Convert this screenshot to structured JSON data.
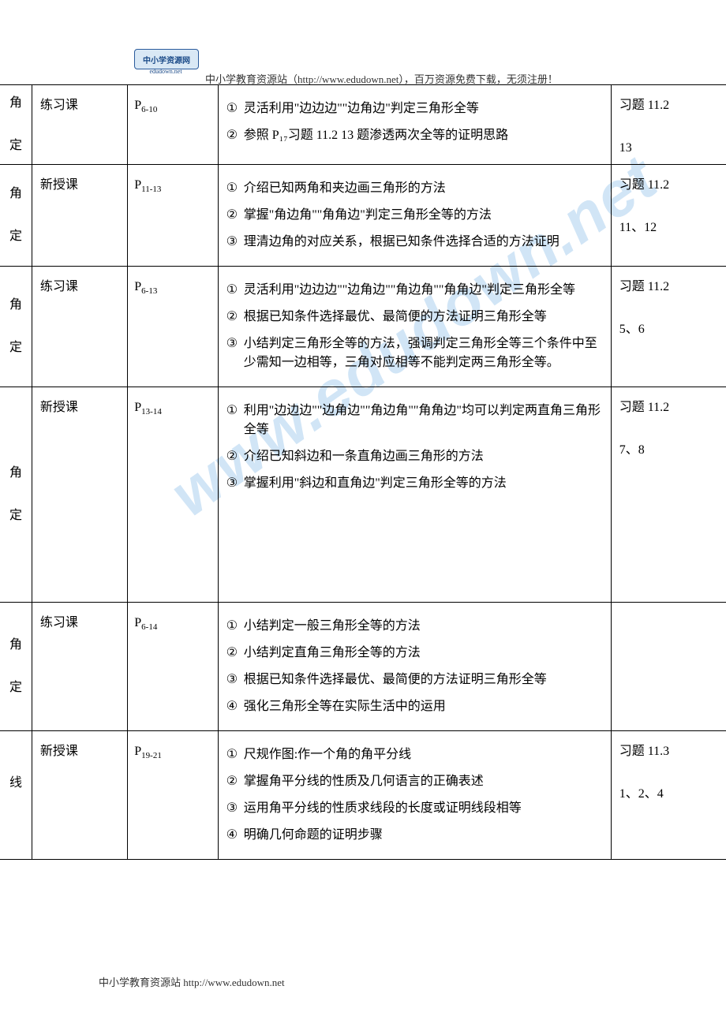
{
  "header": {
    "logo_text": "中小学资源网",
    "logo_sub": "edudown.net",
    "text": "中小学教育资源站（http://www.edudown.net），百万资源免费下载，无须注册！"
  },
  "footer": {
    "text": "中小学教育资源站 http://www.edudown.net"
  },
  "watermark": "www.edudown.net",
  "circled": [
    "①",
    "②",
    "③",
    "④"
  ],
  "rows": [
    {
      "col0a": "角",
      "col0b": "定",
      "type": "练习课",
      "pages_base": "P",
      "pages_sub": "6-10",
      "items": [
        "灵活利用\"边边边\"\"边角边\"判定三角形全等",
        "参照 P₁₇习题  11.2   13 题渗透两次全等的证明思路"
      ],
      "hw1": "习题 11.2",
      "hw2": "13"
    },
    {
      "col0a": "角",
      "col0b": "定",
      "type": "新授课",
      "pages_base": "P",
      "pages_sub": "11-13",
      "items": [
        "介绍已知两角和夹边画三角形的方法",
        "掌握\"角边角\"\"角角边\"判定三角形全等的方法",
        "理清边角的对应关系，根据已知条件选择合适的方法证明"
      ],
      "hw1": "习题 11.2",
      "hw2": "11、12"
    },
    {
      "col0a": "角",
      "col0b": "定",
      "type": "练习课",
      "pages_base": "P",
      "pages_sub": "6-13",
      "items": [
        "灵活利用\"边边边\"\"边角边\"\"角边角\"\"角角边\"判定三角形全等",
        "根据已知条件选择最优、最简便的方法证明三角形全等",
        "小结判定三角形全等的方法，强调判定三角形全等三个条件中至少需知一边相等，三角对应相等不能判定两三角形全等。"
      ],
      "hw1": "习题 11.2",
      "hw2": "5、6"
    },
    {
      "col0a": "角",
      "col0b": "定",
      "type": "新授课",
      "pages_base": "P",
      "pages_sub": "13-14",
      "items": [
        "利用\"边边边\"\"边角边\"\"角边角\"\"角角边\"均可以判定两直角三角形全等",
        "介绍已知斜边和一条直角边画三角形的方法",
        "掌握利用\"斜边和直角边\"判定三角形全等的方法"
      ],
      "hw1": "习题 11.2",
      "hw2": "7、8",
      "extra_space": true
    },
    {
      "col0a": "角",
      "col0b": "定",
      "type": "练习课",
      "pages_base": "P",
      "pages_sub": "6-14",
      "items": [
        "小结判定一般三角形全等的方法",
        "小结判定直角三角形全等的方法",
        "根据已知条件选择最优、最简便的方法证明三角形全等",
        "强化三角形全等在实际生活中的运用"
      ],
      "hw1": "",
      "hw2": ""
    },
    {
      "col0a": "线",
      "col0b": "",
      "type": "新授课",
      "pages_base": "P",
      "pages_sub": "19-21",
      "items": [
        "尺规作图:作一个角的角平分线",
        "掌握角平分线的性质及几何语言的正确表述",
        "运用角平分线的性质求线段的长度或证明线段相等",
        "明确几何命题的证明步骤"
      ],
      "hw1": "习题 11.3",
      "hw2": "1、2、4"
    }
  ]
}
